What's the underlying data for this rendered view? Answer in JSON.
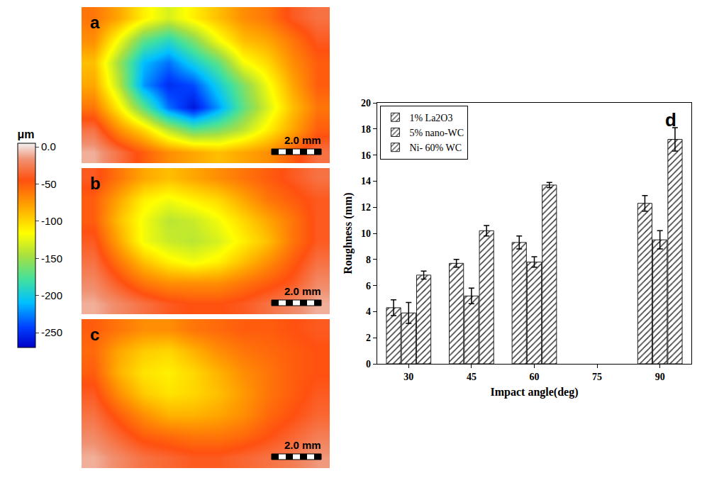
{
  "colorbar": {
    "title": "μm",
    "range": [
      -270,
      5
    ],
    "ticks": [
      {
        "value": 0,
        "label": "0.0"
      },
      -50,
      -100,
      -150,
      -200,
      -250
    ]
  },
  "chart_data": [
    {
      "type": "heatmap",
      "panel": "a",
      "scale_bar": "2.0 mm",
      "tick_labels": false,
      "cells": [
        [
          -60,
          -80,
          -110,
          -130,
          -110,
          -90,
          -70,
          -60,
          -40,
          -30
        ],
        [
          -70,
          -120,
          -170,
          -190,
          -160,
          -120,
          -90,
          -80,
          -60,
          -40
        ],
        [
          -90,
          -150,
          -210,
          -230,
          -200,
          -170,
          -120,
          -100,
          -70,
          -50
        ],
        [
          -80,
          -140,
          -220,
          -250,
          -240,
          -200,
          -160,
          -120,
          -80,
          -50
        ],
        [
          -60,
          -110,
          -170,
          -230,
          -260,
          -220,
          -170,
          -130,
          -90,
          -60
        ],
        [
          -30,
          -70,
          -100,
          -140,
          -170,
          -160,
          -140,
          -110,
          -80,
          -50
        ],
        [
          -10,
          -30,
          -50,
          -70,
          -80,
          -90,
          -80,
          -70,
          -50,
          -30
        ]
      ]
    },
    {
      "type": "heatmap",
      "panel": "b",
      "scale_bar": "2.0 mm",
      "tick_labels": false,
      "cells": [
        [
          -40,
          -60,
          -80,
          -90,
          -80,
          -70,
          -60,
          -50,
          -40,
          -30
        ],
        [
          -50,
          -80,
          -110,
          -120,
          -110,
          -100,
          -80,
          -60,
          -50,
          -40
        ],
        [
          -50,
          -90,
          -120,
          -140,
          -135,
          -120,
          -100,
          -80,
          -60,
          -40
        ],
        [
          -40,
          -80,
          -120,
          -135,
          -140,
          -130,
          -110,
          -90,
          -60,
          -40
        ],
        [
          -30,
          -60,
          -90,
          -110,
          -120,
          -110,
          -90,
          -70,
          -50,
          -30
        ],
        [
          -20,
          -40,
          -60,
          -70,
          -70,
          -70,
          -60,
          -50,
          -40,
          -20
        ],
        [
          -10,
          -20,
          -30,
          -40,
          -45,
          -45,
          -40,
          -30,
          -20,
          -10
        ]
      ]
    },
    {
      "type": "heatmap",
      "panel": "c",
      "scale_bar": "2.0 mm",
      "tick_labels": false,
      "cells": [
        [
          -50,
          -60,
          -70,
          -70,
          -60,
          -55,
          -50,
          -50,
          -45,
          -40
        ],
        [
          -55,
          -80,
          -95,
          -100,
          -85,
          -70,
          -60,
          -55,
          -50,
          -45
        ],
        [
          -50,
          -85,
          -105,
          -110,
          -100,
          -85,
          -70,
          -60,
          -50,
          -45
        ],
        [
          -40,
          -70,
          -95,
          -105,
          -100,
          -90,
          -75,
          -60,
          -50,
          -40
        ],
        [
          -30,
          -50,
          -70,
          -85,
          -85,
          -80,
          -70,
          -55,
          -45,
          -35
        ],
        [
          -20,
          -35,
          -50,
          -55,
          -60,
          -60,
          -55,
          -45,
          -35,
          -25
        ],
        [
          -10,
          -20,
          -30,
          -35,
          -40,
          -40,
          -35,
          -30,
          -25,
          -15
        ]
      ]
    },
    {
      "type": "bar",
      "panel": "d",
      "x_label": "Impact angle(deg)",
      "y_label": "Roughness (mm)",
      "categories": [
        "30",
        "45",
        "60",
        "75",
        "90"
      ],
      "series": [
        {
          "name": "1% La2O3",
          "color": "#5fe04a",
          "values": [
            4.3,
            7.7,
            9.3,
            null,
            12.3
          ],
          "errors": [
            0.6,
            0.3,
            0.5,
            null,
            0.6
          ]
        },
        {
          "name": "5% nano-WC",
          "color": "#e2382c",
          "values": [
            3.9,
            5.2,
            7.8,
            null,
            9.5
          ],
          "errors": [
            0.8,
            0.6,
            0.4,
            null,
            0.7
          ]
        },
        {
          "name": "Ni- 60% WC",
          "color": "#2f2fd8",
          "values": [
            6.8,
            10.2,
            13.7,
            null,
            17.2
          ],
          "errors": [
            0.3,
            0.4,
            0.2,
            null,
            0.9
          ]
        }
      ],
      "ylim": [
        0,
        20
      ],
      "yticks": [
        0,
        2,
        4,
        6,
        8,
        10,
        12,
        14,
        16,
        18,
        20
      ],
      "legend": "upper left",
      "grid": false
    }
  ]
}
